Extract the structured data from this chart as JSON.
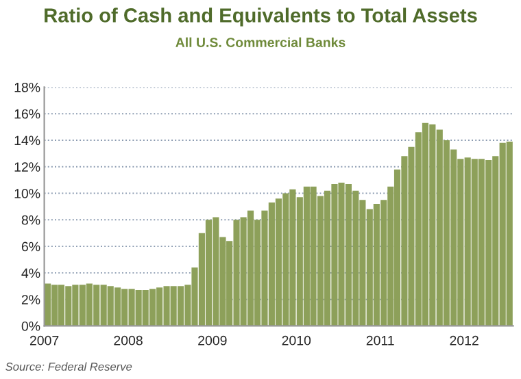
{
  "chart_data": {
    "type": "bar",
    "title": "Ratio of Cash and Equivalents to Total Assets",
    "subtitle": "All U.S. Commercial Banks",
    "x": [
      "2007-01-16",
      "2007-02-15",
      "2007-03-16",
      "2007-04-16",
      "2007-05-16",
      "2007-06-16",
      "2007-07-16",
      "2007-08-16",
      "2007-09-16",
      "2007-10-16",
      "2007-11-16",
      "2007-12-16",
      "2008-01-16",
      "2008-02-15",
      "2008-03-16",
      "2008-04-16",
      "2008-05-16",
      "2008-06-16",
      "2008-07-16",
      "2008-08-16",
      "2008-09-16",
      "2008-10-16",
      "2008-11-16",
      "2008-12-16",
      "2009-01-16",
      "2009-02-15",
      "2009-03-16",
      "2009-04-16",
      "2009-05-16",
      "2009-06-16",
      "2009-07-16",
      "2009-08-16",
      "2009-09-16",
      "2009-10-16",
      "2009-11-16",
      "2009-12-16",
      "2010-01-16",
      "2010-02-15",
      "2010-03-16",
      "2010-04-16",
      "2010-05-16",
      "2010-06-16",
      "2010-07-16",
      "2010-08-16",
      "2010-09-16",
      "2010-10-16",
      "2010-11-16",
      "2010-12-16",
      "2011-01-16",
      "2011-02-15",
      "2011-03-16",
      "2011-04-16",
      "2011-05-16",
      "2011-06-16",
      "2011-07-16",
      "2011-08-16",
      "2011-09-16",
      "2011-10-16",
      "2011-11-16",
      "2011-12-16",
      "2012-01-16",
      "2012-02-15",
      "2012-03-16",
      "2012-04-16",
      "2012-05-16",
      "2012-06-16",
      "2012-07-16"
    ],
    "values": [
      3.2,
      3.1,
      3.1,
      3.0,
      3.1,
      3.1,
      3.2,
      3.1,
      3.1,
      3.0,
      2.9,
      2.8,
      2.8,
      2.7,
      2.7,
      2.8,
      2.9,
      3.0,
      3.0,
      3.0,
      3.1,
      4.4,
      7.0,
      8.0,
      8.2,
      6.7,
      6.4,
      8.0,
      8.2,
      8.7,
      8.0,
      8.7,
      9.3,
      9.6,
      10.0,
      10.3,
      9.7,
      10.5,
      10.5,
      9.8,
      10.2,
      10.7,
      10.8,
      10.7,
      10.2,
      9.5,
      8.8,
      9.2,
      9.5,
      10.5,
      11.8,
      12.8,
      13.5,
      14.6,
      15.3,
      15.2,
      14.8,
      14.0,
      13.3,
      12.6,
      12.7,
      12.6,
      12.6,
      12.5,
      12.8,
      13.8,
      13.9
    ],
    "color": "#8da05a",
    "xlim": [
      "2007-01",
      "2012-08"
    ],
    "xticks": [
      {
        "value": "2007",
        "label": "2007"
      },
      {
        "value": "2008",
        "label": "2008"
      },
      {
        "value": "2009",
        "label": "2009"
      },
      {
        "value": "2010",
        "label": "2010"
      },
      {
        "value": "2011",
        "label": "2011"
      },
      {
        "value": "2012",
        "label": "2012"
      }
    ],
    "ylim": [
      0,
      18
    ],
    "yticks": [
      {
        "value": 0,
        "label": "0%"
      },
      {
        "value": 2,
        "label": "2%"
      },
      {
        "value": 4,
        "label": "4%"
      },
      {
        "value": 6,
        "label": "6%"
      },
      {
        "value": 8,
        "label": "8%"
      },
      {
        "value": 10,
        "label": "10%"
      },
      {
        "value": 12,
        "label": "12%"
      },
      {
        "value": 14,
        "label": "14%"
      },
      {
        "value": 16,
        "label": "16%"
      },
      {
        "value": 18,
        "label": "18%"
      }
    ],
    "grid": "y",
    "annotations": [
      "Source: Federal Reserve"
    ]
  }
}
